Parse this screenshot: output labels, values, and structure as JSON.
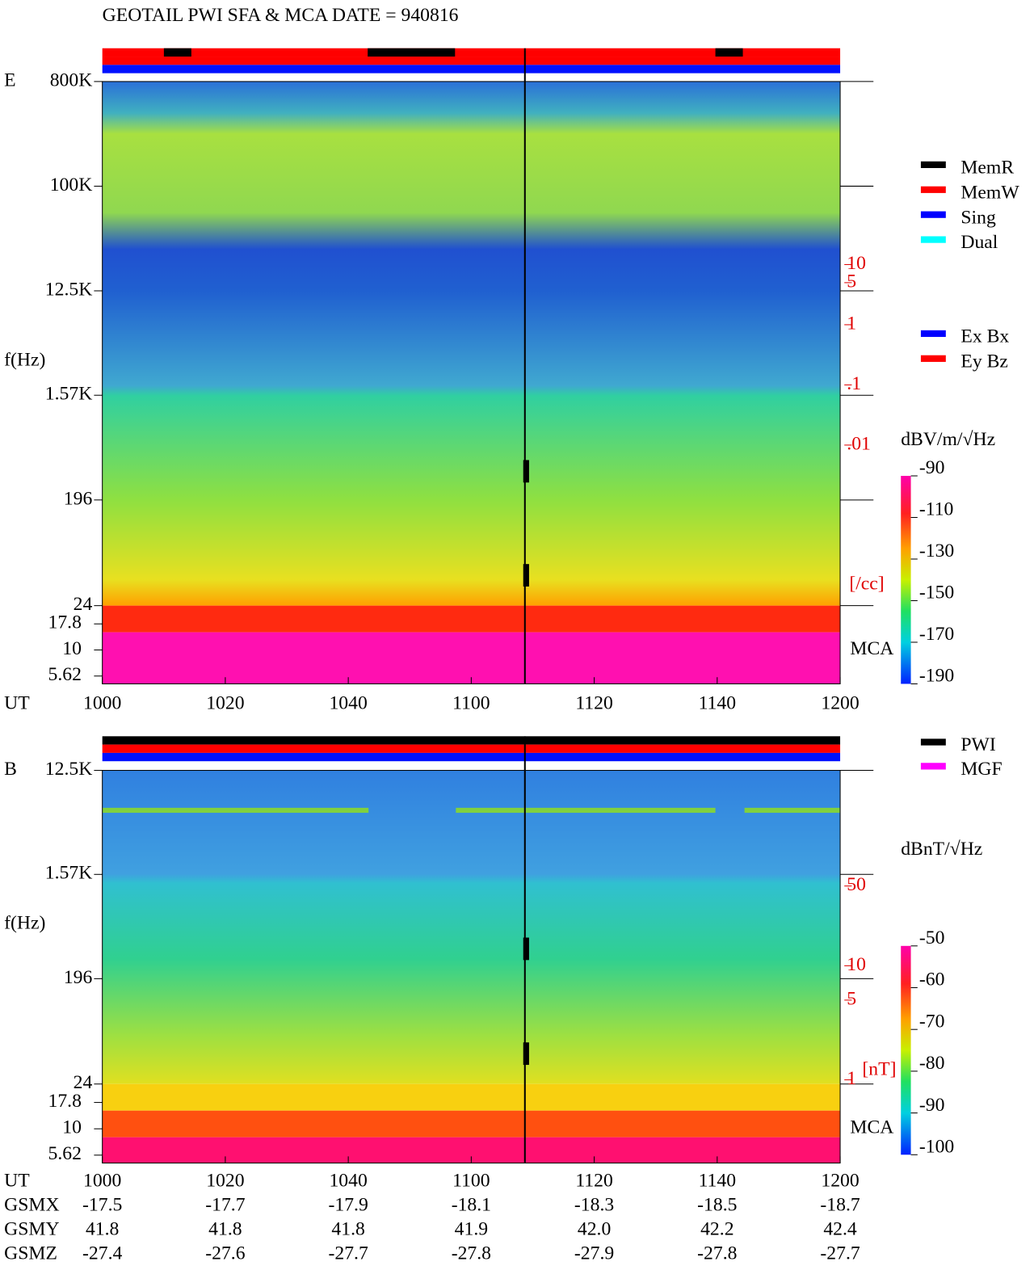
{
  "title": "GEOTAIL  PWI SFA & MCA   DATE = 940816",
  "chart_data": [
    {
      "type": "spectrogram",
      "panel_label": "E",
      "x_label": "UT",
      "y_label": "f(Hz)",
      "ylog": true,
      "ylim": [
        24,
        800000
      ],
      "yticks": [
        {
          "value": 800000,
          "label": "800K"
        },
        {
          "value": 100000,
          "label": "100K"
        },
        {
          "value": 12500,
          "label": "12.5K"
        },
        {
          "value": 1570,
          "label": "1.57K"
        },
        196,
        24
      ],
      "mca_label": "MCA",
      "mca_yticks": [
        17.8,
        10,
        5.62
      ],
      "xlim": [
        1000,
        1200
      ],
      "xticks": [
        1000,
        1020,
        1040,
        1100,
        1120,
        1140,
        1200
      ],
      "colorbar_label": "dBV/m/√Hz",
      "clim": [
        -190,
        -90
      ],
      "cticks": [
        -90,
        -110,
        -130,
        -150,
        -170,
        -190
      ],
      "right_scale_label": "[/cc]",
      "right_scale_lim": [
        0.01,
        10
      ],
      "right_scale_ticks": [
        10,
        5,
        1,
        {
          "value": 0.1,
          "label": ".1"
        },
        {
          "value": 0.01,
          "label": ".01"
        }
      ],
      "legend": [
        {
          "name": "MemR",
          "color": "#000000"
        },
        {
          "name": "MemW",
          "color": "#ff0000"
        },
        {
          "name": "Sing",
          "color": "#0000ff"
        },
        {
          "name": "Dual",
          "color": "#00ffff"
        }
      ],
      "legend2": [
        {
          "name": "Ex Bx",
          "color": "#0000ff"
        },
        {
          "name": "Ey Bz",
          "color": "#ff0000"
        }
      ]
    },
    {
      "type": "spectrogram",
      "panel_label": "B",
      "x_label": "UT",
      "y_label": "f(Hz)",
      "ylog": true,
      "ylim": [
        24,
        12500
      ],
      "yticks": [
        {
          "value": 12500,
          "label": "12.5K"
        },
        {
          "value": 1570,
          "label": "1.57K"
        },
        196,
        24
      ],
      "mca_label": "MCA",
      "mca_yticks": [
        17.8,
        10,
        5.62
      ],
      "xlim": [
        1000,
        1200
      ],
      "xticks": [
        1000,
        1020,
        1040,
        1100,
        1120,
        1140,
        1200
      ],
      "colorbar_label": "dBnT/√Hz",
      "clim": [
        -100,
        -50
      ],
      "cticks": [
        -50,
        -60,
        -70,
        -80,
        -90,
        -100
      ],
      "right_scale_label": "[nT]",
      "right_scale_lim": [
        1,
        50
      ],
      "right_scale_ticks": [
        50,
        10,
        5,
        1
      ],
      "legend": [
        {
          "name": "PWI",
          "color": "#000000"
        },
        {
          "name": "MGF",
          "color": "#ff00ff"
        }
      ]
    }
  ],
  "orbit": {
    "rows": [
      {
        "name": "GSMX",
        "values": [
          -17.5,
          -17.7,
          -17.9,
          -18.1,
          -18.3,
          -18.5,
          -18.7
        ]
      },
      {
        "name": "GSMY",
        "values": [
          41.8,
          41.8,
          41.8,
          41.9,
          42.0,
          42.2,
          42.4
        ],
        "value_labels": [
          "41.8",
          "41.8",
          "41.8",
          "41.9",
          "42.0",
          "42.2",
          "42.4"
        ]
      },
      {
        "name": "GSMZ",
        "values": [
          -27.4,
          -27.6,
          -27.7,
          -27.8,
          -27.9,
          -27.8,
          -27.7
        ]
      }
    ]
  }
}
